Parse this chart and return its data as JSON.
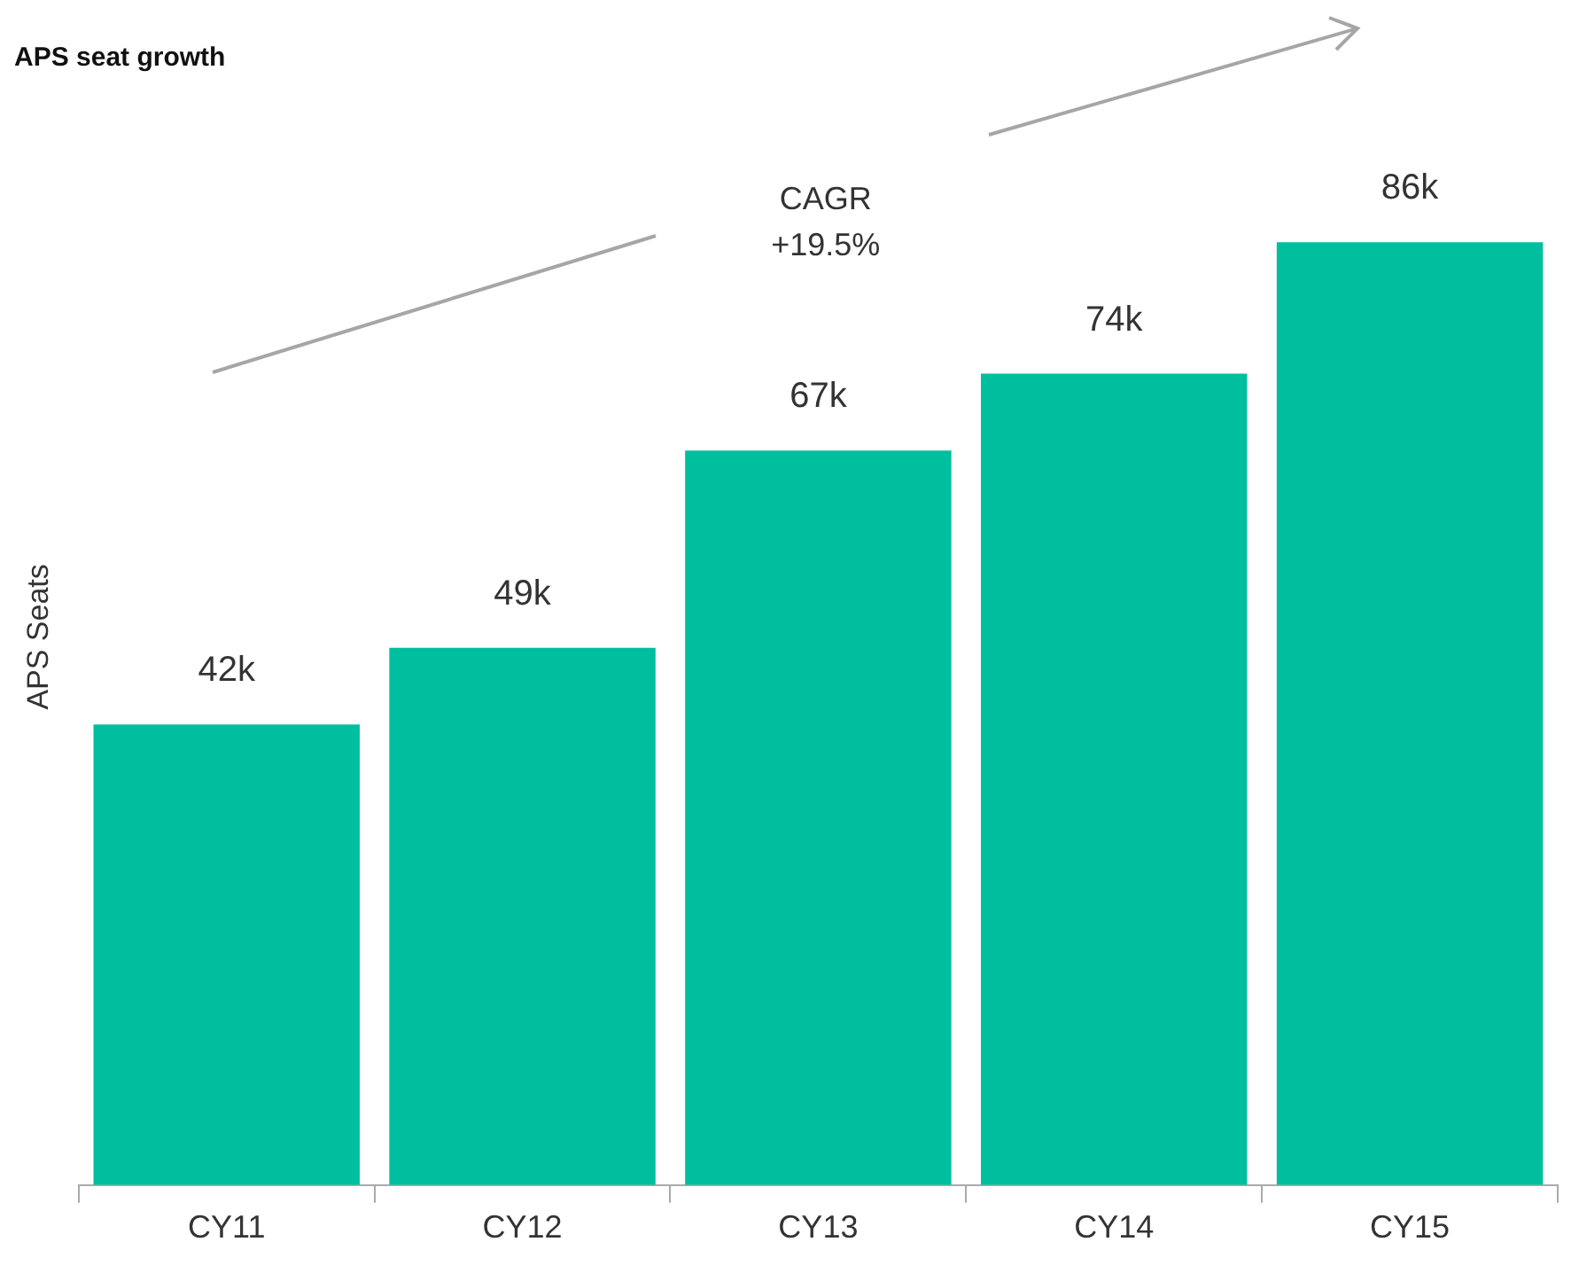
{
  "chart_data": {
    "type": "bar",
    "title": "APS seat growth",
    "ylabel": "APS Seats",
    "categories": [
      "CY11",
      "CY12",
      "CY13",
      "CY14",
      "CY15"
    ],
    "values": [
      42,
      49,
      67,
      74,
      86
    ],
    "value_labels": [
      "42k",
      "49k",
      "67k",
      "74k",
      "86k"
    ],
    "color": "#00bf9f",
    "annotations": [
      "CAGR\n+19.5%"
    ]
  }
}
